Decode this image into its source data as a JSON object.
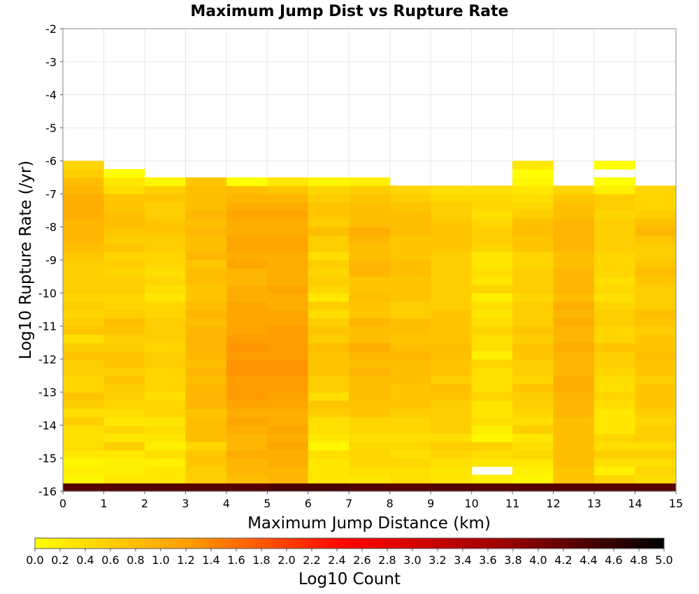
{
  "chart_data": {
    "type": "heatmap",
    "title": "Maximum Jump Dist vs Rupture Rate",
    "xlabel": "Maximum Jump Distance (km)",
    "ylabel": "Log10 Rupture Rate (/yr)",
    "xlim": [
      0,
      15
    ],
    "ylim": [
      -16,
      -2
    ],
    "x_ticks": [
      "0",
      "1",
      "2",
      "3",
      "4",
      "5",
      "6",
      "7",
      "8",
      "9",
      "10",
      "11",
      "12",
      "13",
      "14",
      "15"
    ],
    "y_ticks": [
      "-2",
      "-3",
      "-4",
      "-5",
      "-6",
      "-7",
      "-8",
      "-9",
      "-10",
      "-11",
      "-12",
      "-13",
      "-14",
      "-15",
      "-16"
    ],
    "x_bin_width": 1,
    "y_bin_height": 0.25,
    "y_first_bin_bottom": -16.0,
    "colorbar": {
      "label": "Log10 Count",
      "min": 0.0,
      "max": 5.0,
      "ticks": [
        "0.0",
        "0.2",
        "0.4",
        "0.6",
        "0.8",
        "1.0",
        "1.2",
        "1.4",
        "1.6",
        "1.8",
        "2.0",
        "2.2",
        "2.4",
        "2.6",
        "2.8",
        "3.0",
        "3.2",
        "3.4",
        "3.6",
        "3.8",
        "4.0",
        "4.2",
        "4.4",
        "4.6",
        "4.8",
        "5.0"
      ],
      "colors": [
        "#ffff00",
        "#ff9900",
        "#ff0000",
        "#990000",
        "#000000"
      ]
    },
    "grid": true,
    "cell_values_log10_count": [
      [
        4.3,
        4.3,
        4.3,
        4.3,
        4.3,
        4.4,
        4.4,
        4.3,
        4.3,
        4.3,
        4.3,
        4.3,
        4.3,
        4.3,
        4.3
      ],
      [
        0.1,
        0.3,
        0.3,
        0.6,
        0.8,
        0.9,
        0.3,
        0.3,
        0.4,
        0.3,
        0.2,
        0.1,
        0.7,
        0.5,
        0.4
      ],
      [
        0.2,
        0.2,
        0.3,
        0.6,
        0.9,
        0.9,
        0.3,
        0.4,
        0.4,
        0.3,
        null,
        0.2,
        0.7,
        0.2,
        0.5
      ],
      [
        0.1,
        0.2,
        0.2,
        0.7,
        0.9,
        1.0,
        0.3,
        0.5,
        0.5,
        0.4,
        0.3,
        0.3,
        0.8,
        0.4,
        0.4
      ],
      [
        0.3,
        0.3,
        0.4,
        0.7,
        1.0,
        1.0,
        0.4,
        0.5,
        0.4,
        0.5,
        0.4,
        0.5,
        0.8,
        0.6,
        0.6
      ],
      [
        0.4,
        0.6,
        0.2,
        0.5,
        0.9,
        1.1,
        0.1,
        0.5,
        0.5,
        0.6,
        0.6,
        0.4,
        0.8,
        0.4,
        0.4
      ],
      [
        0.4,
        0.3,
        0.3,
        0.8,
        0.9,
        1.0,
        0.3,
        0.4,
        0.4,
        0.4,
        0.1,
        0.3,
        0.8,
        0.5,
        0.6
      ],
      [
        0.4,
        0.5,
        0.4,
        0.8,
        1.0,
        1.1,
        0.4,
        0.5,
        0.5,
        0.6,
        0.2,
        0.6,
        0.8,
        0.3,
        0.6
      ],
      [
        0.6,
        0.3,
        0.3,
        0.8,
        1.1,
        1.0,
        0.4,
        0.5,
        0.5,
        0.6,
        0.4,
        0.4,
        0.8,
        0.3,
        0.5
      ],
      [
        0.4,
        0.4,
        0.5,
        0.7,
        1.0,
        1.0,
        0.6,
        0.7,
        0.6,
        0.6,
        0.3,
        0.5,
        0.9,
        0.3,
        0.6
      ],
      [
        0.6,
        0.5,
        0.5,
        0.9,
        1.1,
        1.1,
        0.7,
        0.7,
        0.7,
        0.6,
        0.3,
        0.6,
        0.9,
        0.4,
        0.7
      ],
      [
        0.7,
        0.6,
        0.4,
        0.9,
        1.2,
        1.1,
        0.4,
        0.8,
        0.7,
        0.7,
        0.5,
        0.6,
        0.9,
        0.5,
        0.7
      ],
      [
        0.5,
        0.6,
        0.5,
        0.9,
        1.2,
        1.2,
        0.6,
        0.8,
        0.7,
        0.8,
        0.4,
        0.7,
        1.0,
        0.4,
        0.7
      ],
      [
        0.5,
        0.7,
        0.5,
        0.8,
        1.2,
        1.2,
        0.6,
        0.8,
        0.8,
        0.6,
        0.4,
        0.5,
        1.0,
        0.4,
        0.6
      ],
      [
        0.6,
        0.6,
        0.5,
        0.9,
        1.3,
        1.3,
        0.7,
        0.9,
        0.8,
        0.7,
        0.4,
        0.6,
        0.9,
        0.5,
        0.7
      ],
      [
        0.6,
        0.7,
        0.6,
        0.8,
        1.3,
        1.3,
        0.7,
        0.8,
        0.8,
        0.7,
        0.5,
        0.6,
        0.9,
        0.6,
        0.7
      ],
      [
        0.7,
        0.7,
        0.6,
        0.9,
        1.2,
        1.2,
        0.7,
        0.9,
        0.9,
        0.8,
        0.2,
        0.7,
        0.9,
        0.6,
        0.8
      ],
      [
        0.6,
        0.6,
        0.5,
        0.9,
        1.3,
        1.2,
        0.8,
        1.0,
        0.8,
        0.8,
        0.4,
        0.7,
        1.0,
        0.7,
        0.7
      ],
      [
        0.4,
        0.6,
        0.6,
        0.9,
        1.2,
        1.2,
        0.6,
        0.8,
        0.7,
        0.7,
        0.4,
        0.6,
        0.9,
        0.5,
        0.7
      ],
      [
        0.7,
        0.7,
        0.6,
        0.9,
        1.1,
        1.2,
        0.7,
        0.8,
        0.8,
        0.7,
        0.5,
        0.7,
        0.9,
        0.5,
        0.6
      ],
      [
        0.6,
        0.8,
        0.6,
        0.8,
        1.1,
        1.1,
        0.6,
        0.9,
        0.8,
        0.7,
        0.4,
        0.6,
        1.0,
        0.6,
        0.7
      ],
      [
        0.5,
        0.6,
        0.5,
        0.9,
        1.1,
        1.1,
        0.4,
        0.7,
        0.6,
        0.7,
        0.3,
        0.6,
        0.9,
        0.6,
        0.8
      ],
      [
        0.6,
        0.5,
        0.5,
        0.8,
        1.1,
        1.0,
        0.6,
        0.7,
        0.6,
        0.6,
        0.4,
        0.6,
        1.0,
        0.5,
        0.6
      ],
      [
        0.5,
        0.5,
        0.3,
        0.7,
        1.0,
        1.0,
        0.3,
        0.8,
        0.7,
        0.6,
        0.2,
        0.5,
        0.8,
        0.4,
        0.6
      ],
      [
        0.6,
        0.6,
        0.4,
        0.7,
        1.0,
        1.1,
        0.5,
        0.7,
        0.7,
        0.6,
        0.5,
        0.6,
        0.9,
        0.5,
        0.6
      ],
      [
        0.6,
        0.6,
        0.5,
        0.8,
        0.9,
        1.0,
        0.6,
        0.7,
        0.7,
        0.6,
        0.3,
        0.6,
        0.9,
        0.4,
        0.7
      ],
      [
        0.6,
        0.5,
        0.4,
        0.8,
        0.9,
        1.0,
        0.5,
        0.9,
        0.8,
        0.6,
        0.4,
        0.6,
        0.9,
        0.5,
        0.8
      ],
      [
        0.6,
        0.6,
        0.5,
        0.7,
        1.1,
        1.0,
        0.6,
        0.9,
        0.8,
        0.6,
        0.3,
        0.5,
        0.8,
        0.5,
        0.7
      ],
      [
        0.7,
        0.5,
        0.5,
        0.9,
        1.0,
        1.0,
        0.4,
        0.8,
        0.7,
        0.6,
        0.3,
        0.5,
        0.8,
        0.5,
        0.6
      ],
      [
        0.8,
        0.7,
        0.6,
        0.8,
        1.1,
        1.1,
        0.6,
        0.8,
        0.7,
        0.7,
        0.5,
        0.7,
        0.9,
        0.6,
        0.6
      ],
      [
        0.9,
        0.6,
        0.6,
        0.8,
        1.1,
        1.1,
        0.6,
        0.9,
        0.7,
        0.7,
        0.6,
        0.7,
        0.9,
        0.6,
        0.7
      ],
      [
        0.9,
        0.7,
        0.7,
        0.9,
        1.0,
        1.0,
        0.8,
        1.0,
        0.8,
        0.7,
        0.6,
        0.8,
        0.9,
        0.6,
        0.9
      ],
      [
        0.9,
        0.8,
        0.7,
        0.8,
        1.0,
        1.0,
        0.6,
        0.8,
        0.8,
        0.7,
        0.5,
        0.8,
        0.9,
        0.6,
        0.8
      ],
      [
        1.0,
        0.8,
        0.6,
        0.9,
        1.1,
        1.1,
        0.7,
        0.8,
        0.8,
        0.6,
        0.4,
        0.6,
        0.8,
        0.5,
        0.6
      ],
      [
        1.0,
        0.7,
        0.6,
        0.8,
        1.0,
        1.0,
        0.7,
        0.8,
        0.7,
        0.6,
        0.5,
        0.5,
        0.8,
        0.6,
        0.5
      ],
      [
        1.0,
        0.7,
        0.7,
        0.8,
        0.9,
        0.9,
        0.6,
        0.7,
        0.6,
        0.5,
        0.5,
        0.4,
        0.7,
        0.6,
        0.5
      ],
      [
        0.9,
        0.4,
        0.6,
        0.8,
        0.8,
        0.7,
        0.5,
        0.6,
        0.5,
        0.4,
        0.4,
        0.3,
        0.5,
        0.2,
        0.5
      ],
      [
        0.8,
        0.3,
        0.1,
        0.7,
        0.0,
        0.3,
        0.1,
        0.2,
        null,
        null,
        null,
        0.1,
        null,
        0.0,
        null
      ],
      [
        0.6,
        0.0,
        null,
        null,
        null,
        null,
        null,
        null,
        null,
        null,
        null,
        null,
        null,
        null,
        null
      ],
      [
        0.5,
        null,
        null,
        null,
        null,
        null,
        null,
        null,
        null,
        null,
        null,
        null,
        null,
        null,
        null
      ]
    ],
    "extra_cells_log10_count": [
      {
        "x": 11,
        "y_bin": 38,
        "value": 0.0
      },
      {
        "x": 11,
        "y_bin": 39,
        "value": 0.3
      },
      {
        "x": 13,
        "y_bin": 39,
        "value": 0.0
      }
    ]
  }
}
